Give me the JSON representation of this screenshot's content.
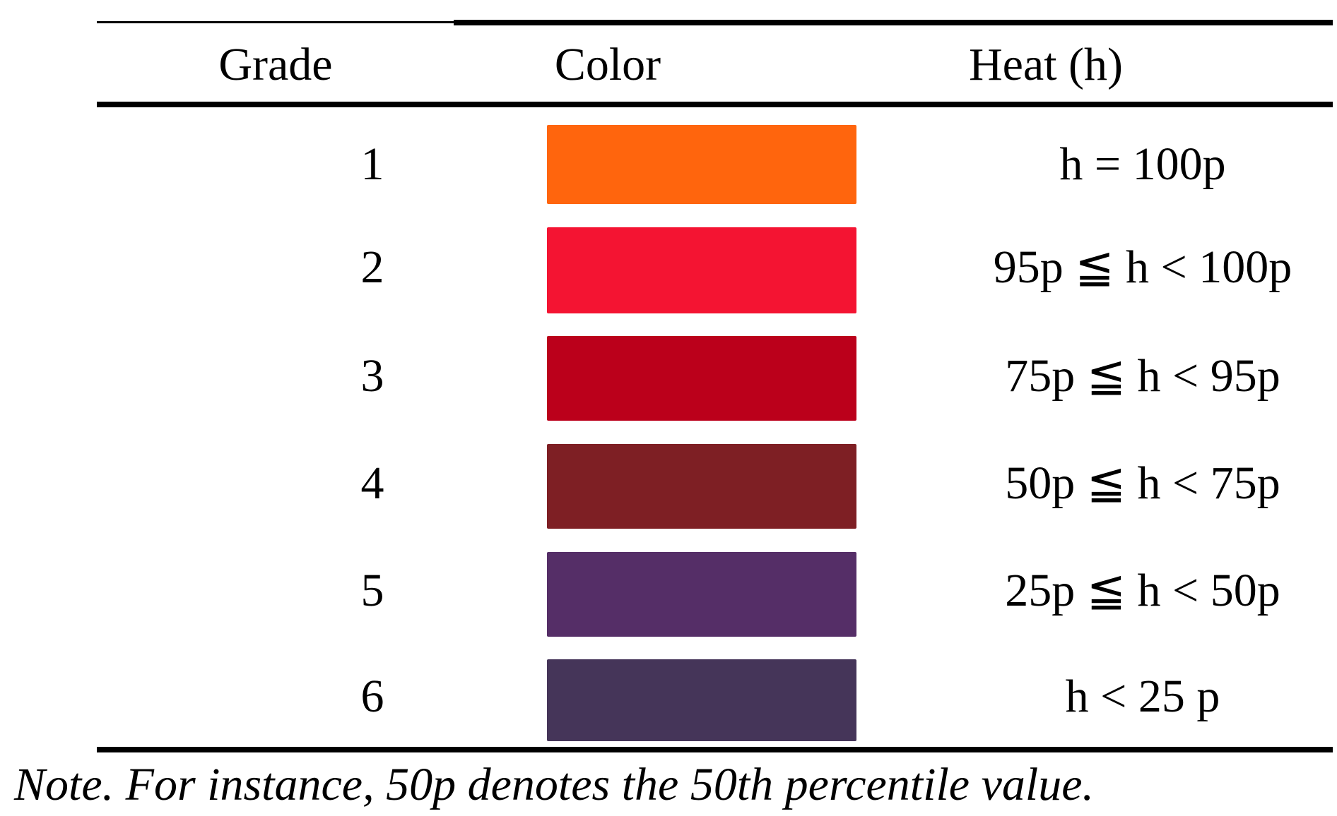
{
  "table": {
    "headers": {
      "grade": "Grade",
      "color": "Color",
      "heat": "Heat (h)"
    },
    "rows": [
      {
        "grade": "1",
        "color": "#ff650d",
        "heat": "h = 100p"
      },
      {
        "grade": "2",
        "color": "#f41432",
        "heat": "95p ≦ h < 100p"
      },
      {
        "grade": "3",
        "color": "#bb001b",
        "heat": "75p ≦ h < 95p"
      },
      {
        "grade": "4",
        "color": "#7e1f24",
        "heat": "50p ≦ h < 75p"
      },
      {
        "grade": "5",
        "color": "#552e67",
        "heat": "25p ≦ h < 50p"
      },
      {
        "grade": "6",
        "color": "#453559",
        "heat": "h < 25 p"
      }
    ]
  },
  "note": "Note. For instance, 50p denotes the 50th percentile value."
}
